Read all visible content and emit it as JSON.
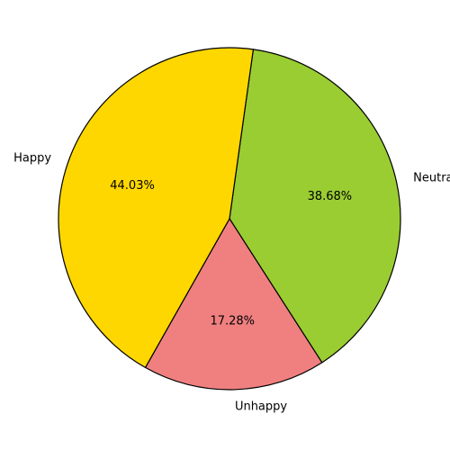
{
  "chart_data": {
    "type": "pie",
    "categories": [
      "Neutral",
      "Unhappy",
      "Happy"
    ],
    "values": [
      38.68,
      17.28,
      44.03
    ],
    "value_labels": [
      "38.68%",
      "17.28%",
      "44.03%"
    ],
    "colors": [
      "#9acd32",
      "#f08080",
      "#ffd700"
    ],
    "slice_outline_color": "#000000",
    "start_angle_deg": 82,
    "direction": "clockwise",
    "legend": "none"
  }
}
